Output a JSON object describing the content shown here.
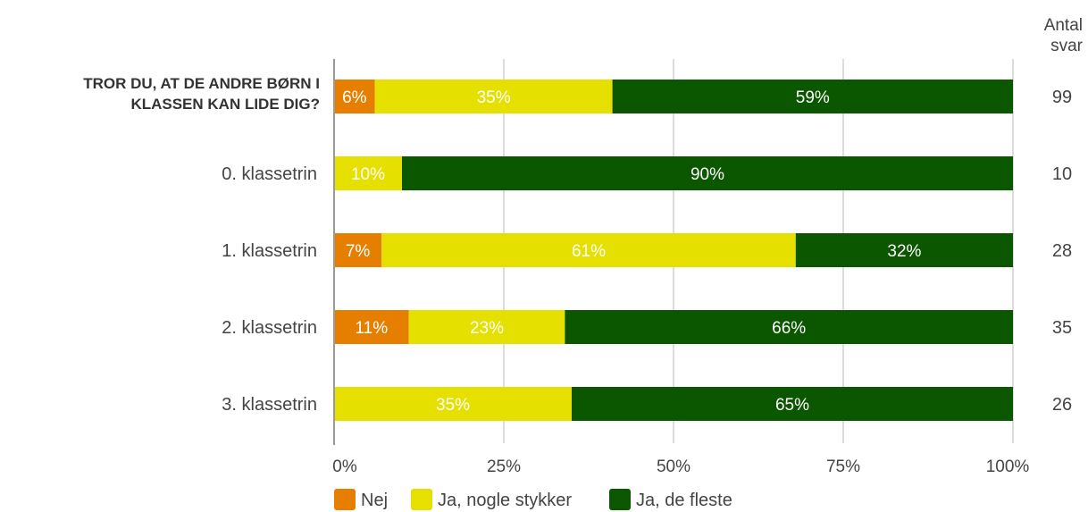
{
  "chart_data": {
    "type": "bar",
    "orientation": "horizontal",
    "stacked": true,
    "categories": [
      "TROR DU, AT DE ANDRE BØRN I|KLASSEN KAN LIDE DIG?",
      "0. klassetrin",
      "1. klassetrin",
      "2. klassetrin",
      "3. klassetrin"
    ],
    "series": [
      {
        "name": "Nej",
        "color": "#E67E00",
        "values": [
          6,
          0,
          7,
          11,
          0
        ]
      },
      {
        "name": "Ja, nogle stykker",
        "color": "#E5E000",
        "values": [
          35,
          10,
          61,
          23,
          35
        ]
      },
      {
        "name": "Ja, de fleste",
        "color": "#0B5700",
        "values": [
          59,
          90,
          32,
          66,
          65
        ]
      }
    ],
    "counts": [
      "99",
      "10",
      "28",
      "35",
      "26"
    ],
    "count_header": [
      "Antal",
      "svar"
    ],
    "xlim": [
      0,
      100
    ],
    "x_ticks": [
      0,
      25,
      50,
      75,
      100
    ],
    "x_tick_labels": [
      "0%",
      "25%",
      "50%",
      "75%",
      "100%"
    ],
    "grid": true,
    "legend_position": "bottom"
  }
}
